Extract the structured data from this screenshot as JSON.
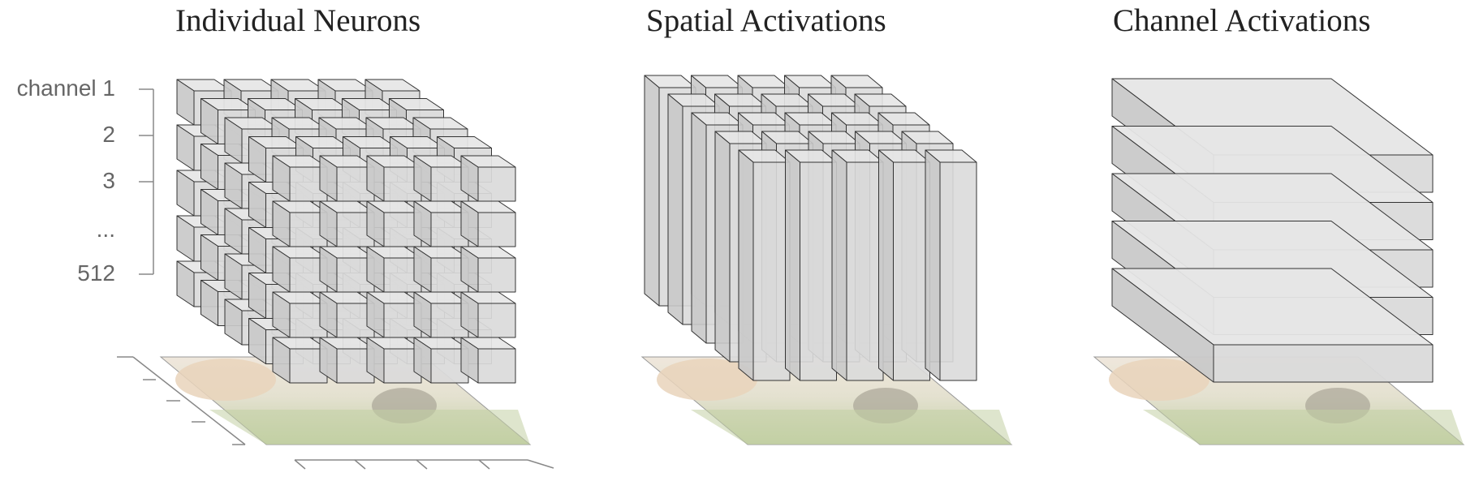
{
  "panels": [
    {
      "title": "Individual Neurons"
    },
    {
      "title": "Spatial Activations"
    },
    {
      "title": "Channel Activations"
    }
  ],
  "channel_axis": {
    "labels": [
      "channel 1",
      "2",
      "3",
      "...",
      "512"
    ]
  },
  "colors": {
    "top_face": "#e6e6e6",
    "front_face": "#dadada",
    "side_face": "#c9c9c9",
    "edge": "#333333",
    "axis": "#888888",
    "floor_sky": "#efe7dc",
    "floor_grass": "#c2d0a4"
  }
}
